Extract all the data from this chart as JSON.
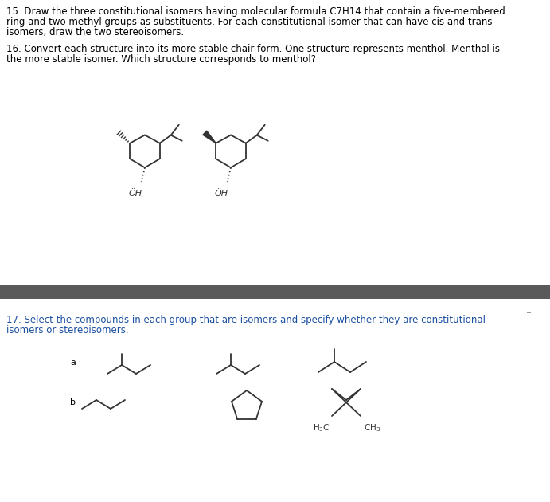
{
  "background_color": "#ffffff",
  "dark_bar_color": "#5a5a5a",
  "text_color_blue": "#1a4fa0",
  "text_color_black": "#000000",
  "line_color": "#333333",
  "q15_text_line1": "15. Draw the three constitutional isomers having molecular formula C7H14 that contain a five-membered",
  "q15_text_line2": "ring and two methyl groups as substituents. For each constitutional isomer that can have cis and trans",
  "q15_text_line3": "isomers, draw the two stereoisomers.",
  "q16_text_line1": "16. Convert each structure into its more stable chair form. One structure represents menthol. Menthol is",
  "q16_text_line2": "the more stable isomer. Which structure corresponds to menthol?",
  "q17_text_line1": "17. Select the compounds in each group that are isomers and specify whether they are constitutional",
  "q17_text_line2": "isomers or stereoisomers.",
  "label_a": "a",
  "label_b": "b",
  "dots_text": "..",
  "fs_main": 8.5,
  "fs_label": 8.0,
  "fs_small": 7.5
}
